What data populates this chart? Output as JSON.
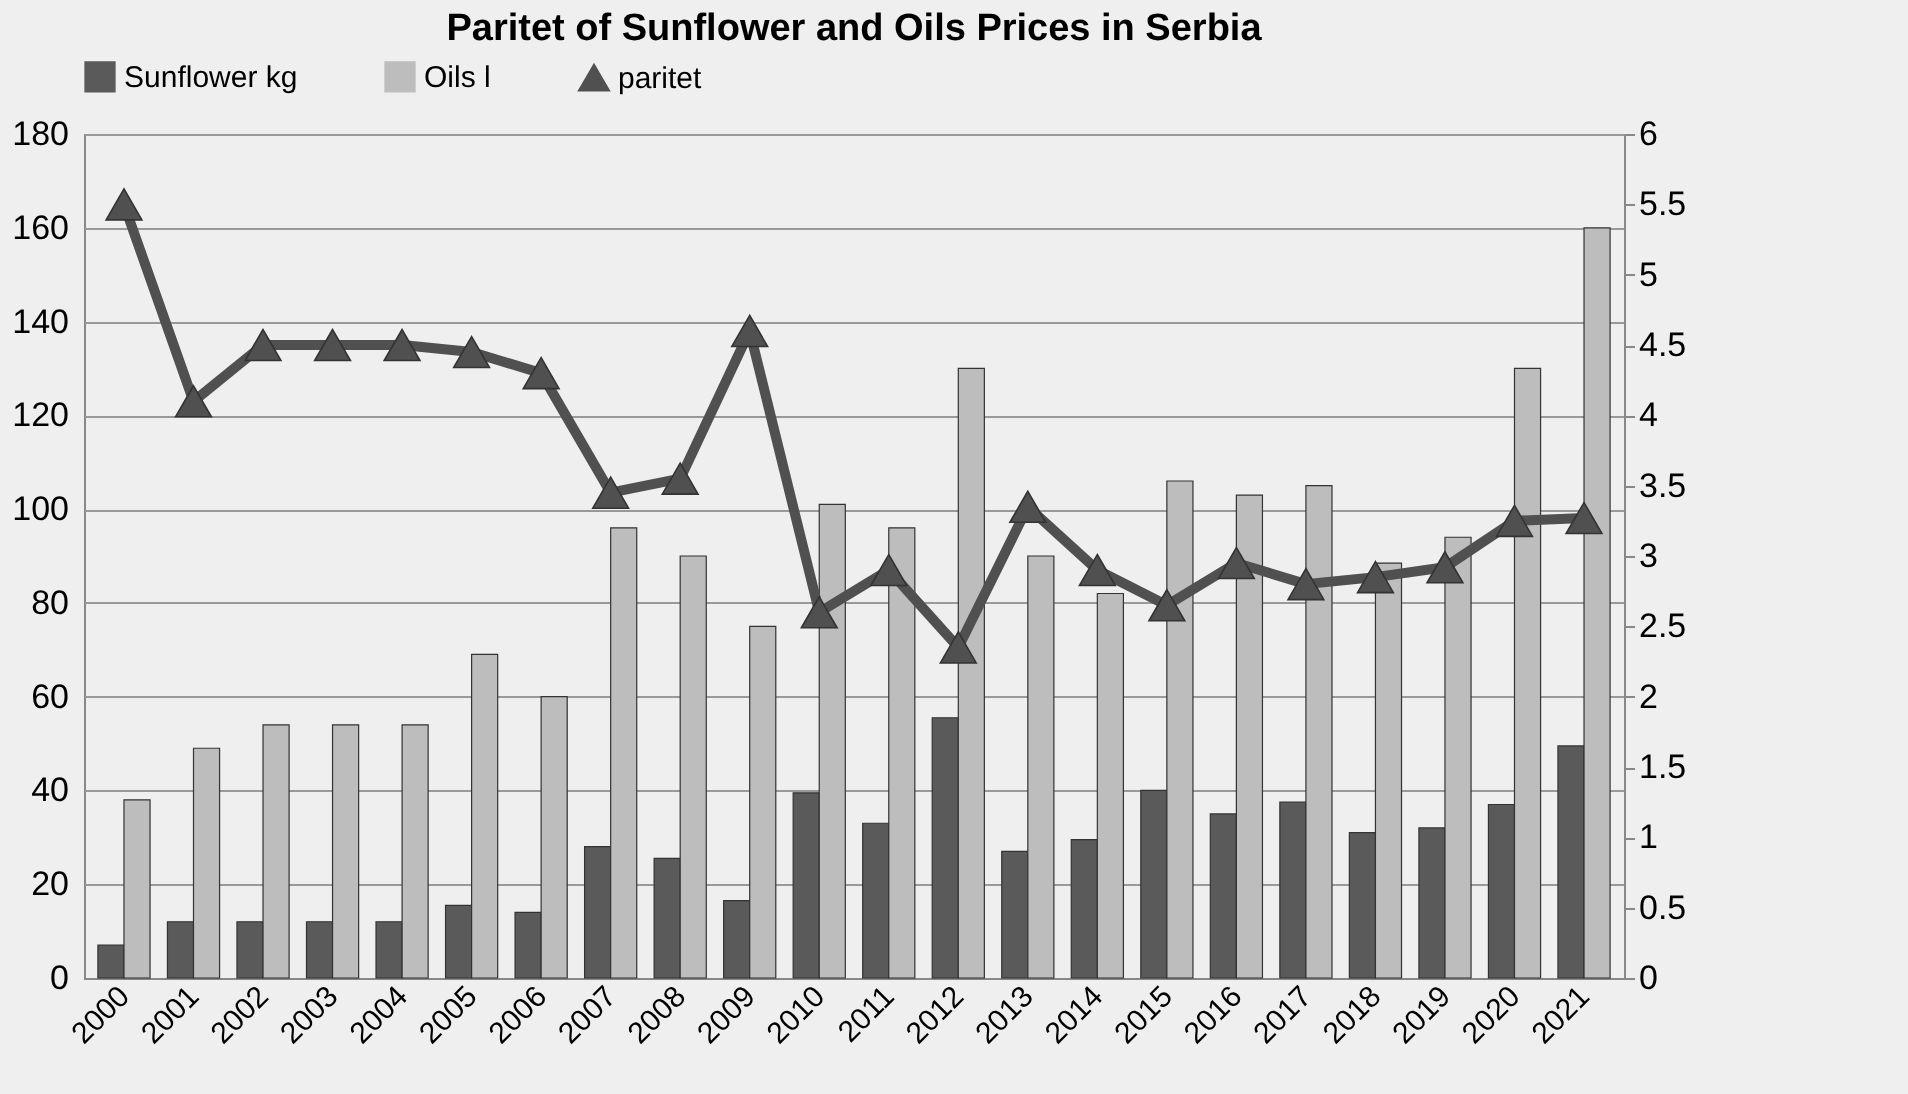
{
  "chart_data": {
    "type": "bar",
    "title": "Paritet of Sunflower and Oils Prices in Serbia",
    "categories": [
      "2000",
      "2001",
      "2002",
      "2003",
      "2004",
      "2005",
      "2006",
      "2007",
      "2008",
      "2009",
      "2010",
      "2011",
      "2012",
      "2013",
      "2014",
      "2015",
      "2016",
      "2017",
      "2018",
      "2019",
      "2020",
      "2021"
    ],
    "series": [
      {
        "name": "Sunflower kg",
        "color": "#5a5a5a",
        "values": [
          7,
          12,
          12,
          12,
          12,
          15.5,
          14,
          28,
          25.5,
          16.5,
          39.5,
          33,
          55.5,
          27,
          29.5,
          40,
          35,
          37.5,
          31,
          32,
          37,
          49.5
        ]
      },
      {
        "name": "Oils l",
        "color": "#bdbdbd",
        "values": [
          38,
          49,
          54,
          54,
          54,
          69,
          60,
          96,
          90,
          75,
          101,
          96,
          130,
          90,
          82,
          106,
          103,
          105,
          88.5,
          94,
          130,
          160
        ]
      },
      {
        "name": "paritet",
        "type": "line",
        "axis": "y2",
        "color": "#505050",
        "marker": "triangle",
        "values": [
          5.5,
          4.1,
          4.5,
          4.5,
          4.5,
          4.45,
          4.3,
          3.45,
          3.55,
          4.6,
          2.6,
          2.9,
          2.35,
          3.35,
          2.9,
          2.65,
          2.95,
          2.8,
          2.85,
          2.92,
          3.25,
          3.27
        ]
      }
    ],
    "ylim": [
      0,
      180
    ],
    "yticks": [
      0,
      20,
      40,
      60,
      80,
      100,
      120,
      140,
      160,
      180
    ],
    "y2lim": [
      0,
      6
    ],
    "y2ticks": [
      0,
      0.5,
      1,
      1.5,
      2,
      2.5,
      3,
      3.5,
      4,
      4.5,
      5,
      5.5,
      6
    ],
    "grid": "y",
    "legend": "top"
  }
}
